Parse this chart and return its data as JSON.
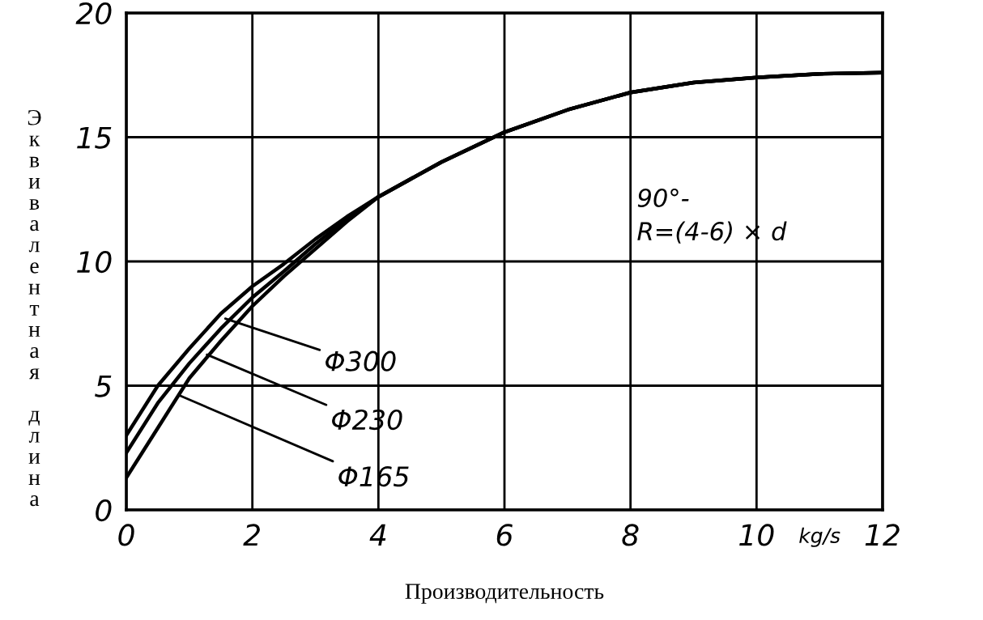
{
  "chart_data": {
    "type": "line",
    "xlabel": "Производительность",
    "ylabel": "Эквивалентная длина",
    "xlim": [
      0,
      12
    ],
    "ylim": [
      0,
      20
    ],
    "xticks": [
      0,
      2,
      4,
      6,
      8,
      10,
      12
    ],
    "yticks": [
      0,
      5,
      10,
      15,
      20
    ],
    "grid": true,
    "marker": "none",
    "line_style": "solid",
    "x": [
      0,
      0.5,
      1,
      1.5,
      2,
      2.5,
      3,
      3.5,
      4,
      5,
      6,
      7,
      8,
      9,
      10,
      11,
      12
    ],
    "series": [
      {
        "color": "#000000",
        "values": [
          3.0,
          5.0,
          6.5,
          7.9,
          9.0,
          9.9,
          10.9,
          11.8,
          12.6,
          14.0,
          15.2,
          16.1,
          16.8,
          17.2,
          17.4,
          17.55,
          17.6
        ]
      },
      {
        "color": "#000000",
        "values": [
          2.3,
          4.3,
          5.9,
          7.3,
          8.55,
          9.6,
          10.7,
          11.7,
          12.6,
          14.0,
          15.2,
          16.1,
          16.8,
          17.2,
          17.4,
          17.55,
          17.6
        ]
      },
      {
        "color": "#000000",
        "values": [
          1.3,
          3.3,
          5.3,
          6.8,
          8.2,
          9.4,
          10.5,
          11.6,
          12.6,
          14.0,
          15.2,
          16.1,
          16.8,
          17.2,
          17.4,
          17.55,
          17.6
        ]
      }
    ],
    "annotations": [
      {
        "text": "Φ300",
        "x": 1.57,
        "y": 7.7
      },
      {
        "text": "Φ230",
        "x": 1.28,
        "y": 6.25
      },
      {
        "text": "Φ165",
        "x": 0.85,
        "y": 4.6
      },
      "90°-\nR=(4-6) × d",
      "kg/s"
    ]
  }
}
